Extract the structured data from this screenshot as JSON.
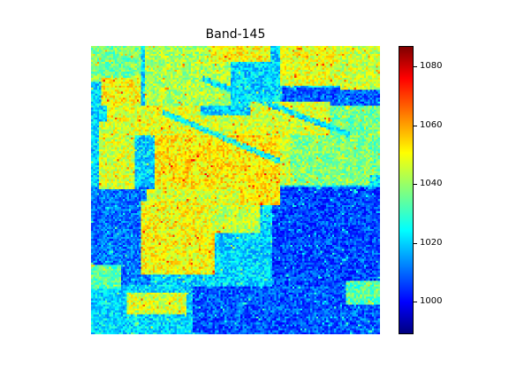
{
  "figure": {
    "title": "Band-145"
  },
  "colorbar": {
    "colormap": "jet",
    "vmin": 989,
    "vmax": 1087,
    "ticks": [
      {
        "value": 1000,
        "label": "1000"
      },
      {
        "value": 1020,
        "label": "1020"
      },
      {
        "value": 1040,
        "label": "1040"
      },
      {
        "value": 1060,
        "label": "1060"
      },
      {
        "value": 1080,
        "label": "1080"
      }
    ]
  },
  "colors": {
    "colormap_stops": [
      "#00007f",
      "#0000ff",
      "#00ffff",
      "#ffff00",
      "#ff0000",
      "#7f0000"
    ]
  }
}
